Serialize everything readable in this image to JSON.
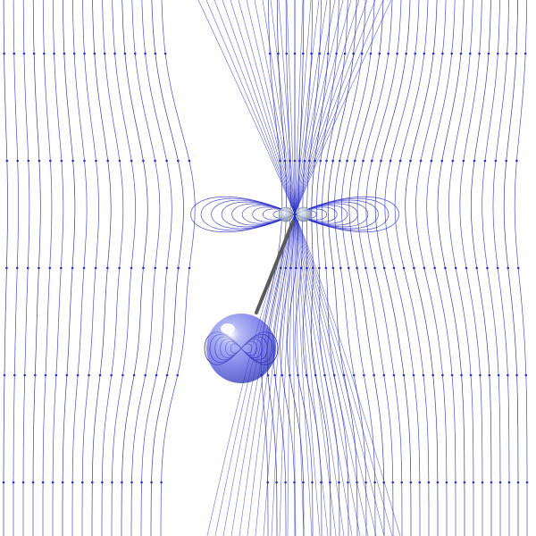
{
  "scene": {
    "description_visible_text": "",
    "colors": {
      "background": "#ffffff",
      "field_line": "#2a2fc8",
      "field_line_dark": "#1a1f8a",
      "sphere_fill": "#3a3fe0",
      "sphere_highlight": "#ffffff",
      "rod": "#5a5a5a",
      "dipole_fill": "#9fb0c8"
    },
    "icons": {
      "upper_dipole": "magnet-dipole-icon",
      "lower_sphere": "charged-sphere-icon",
      "rod": "pendulum-rod-icon"
    }
  }
}
